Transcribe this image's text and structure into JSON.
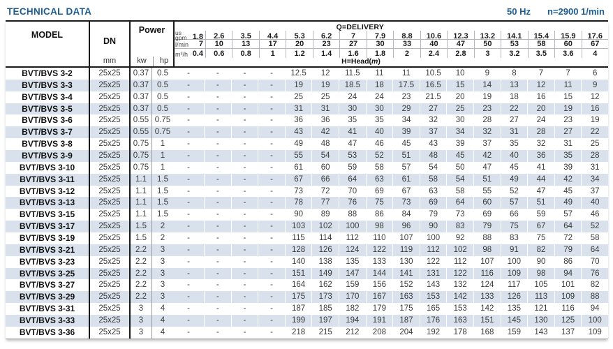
{
  "header": {
    "title": "TECHNICAL DATA",
    "frequency": "50 Hz",
    "speed": "n=2900 1/min"
  },
  "colors": {
    "accent_blue": "#1d5c91",
    "row_stripe": "#d9e2ec",
    "border_black": "#1a1a1a",
    "grid_gray": "#b3b7bc"
  },
  "table": {
    "model_header": "MODEL",
    "dn_header": "DN",
    "dn_unit": "mm",
    "power_header": "Power",
    "power_kw": "kw",
    "power_hp": "hp",
    "delivery_title": "Q=DELIVERY",
    "head_title_pre": "H=Head(",
    "head_title_unit": "m",
    "head_title_post": ")",
    "unit_rows": [
      {
        "label_top": "us",
        "label": "gpm",
        "values": [
          "1.8",
          "2.6",
          "3.5",
          "4.4",
          "5.3",
          "6.2",
          "7",
          "7.9",
          "8.8",
          "10.6",
          "12.3",
          "13.2",
          "14.1",
          "15.4",
          "15.9",
          "17.6"
        ]
      },
      {
        "label": "l/min",
        "values": [
          "7",
          "10",
          "13",
          "17",
          "20",
          "23",
          "27",
          "30",
          "33",
          "40",
          "47",
          "50",
          "53",
          "58",
          "60",
          "67"
        ]
      },
      {
        "label": "m³/h",
        "values": [
          "0.4",
          "0.6",
          "0.8",
          "1",
          "1.2",
          "1.4",
          "1.6",
          "1.8",
          "2",
          "2.4",
          "2.8",
          "3",
          "3.2",
          "3.5",
          "3.6",
          "4"
        ]
      }
    ],
    "rows": [
      {
        "model": "BVT/BVS 3-2",
        "dn": "25x25",
        "kw": "0.37",
        "hp": "0.5",
        "head": [
          "-",
          "-",
          "-",
          "-",
          "12.5",
          "12",
          "11.5",
          "11",
          "11",
          "10.5",
          "10",
          "9",
          "8",
          "7",
          "7",
          "6"
        ]
      },
      {
        "model": "BVT/BVS 3-3",
        "dn": "25x25",
        "kw": "0.37",
        "hp": "0.5",
        "head": [
          "-",
          "-",
          "-",
          "-",
          "19",
          "19",
          "18.5",
          "18",
          "17.5",
          "16.5",
          "15",
          "14",
          "13",
          "12",
          "11",
          "9"
        ]
      },
      {
        "model": "BVT/BVS 3-4",
        "dn": "25x25",
        "kw": "0.37",
        "hp": "0.5",
        "head": [
          "-",
          "-",
          "-",
          "-",
          "25",
          "25",
          "24",
          "24",
          "23",
          "21.5",
          "20",
          "19",
          "18",
          "16",
          "15",
          "12"
        ]
      },
      {
        "model": "BVT/BVS 3-5",
        "dn": "25x25",
        "kw": "0.37",
        "hp": "0.5",
        "head": [
          "-",
          "-",
          "-",
          "-",
          "31",
          "31",
          "30",
          "30",
          "29",
          "27",
          "25",
          "23",
          "22",
          "20",
          "19",
          "16"
        ]
      },
      {
        "model": "BVT/BVS 3-6",
        "dn": "25x25",
        "kw": "0.55",
        "hp": "0.75",
        "head": [
          "-",
          "-",
          "-",
          "-",
          "36",
          "36",
          "35",
          "35",
          "34",
          "32",
          "30",
          "28",
          "27",
          "24",
          "23",
          "19"
        ]
      },
      {
        "model": "BVT/BVS 3-7",
        "dn": "25x25",
        "kw": "0.55",
        "hp": "0.75",
        "head": [
          "-",
          "-",
          "-",
          "-",
          "43",
          "42",
          "41",
          "40",
          "39",
          "37",
          "34",
          "32",
          "31",
          "28",
          "27",
          "22"
        ]
      },
      {
        "model": "BVT/BVS 3-8",
        "dn": "25x25",
        "kw": "0.75",
        "hp": "1",
        "head": [
          "-",
          "-",
          "-",
          "-",
          "49",
          "48",
          "47",
          "46",
          "45",
          "43",
          "39",
          "37",
          "35",
          "32",
          "31",
          "25"
        ]
      },
      {
        "model": "BVT/BVS 3-9",
        "dn": "25x25",
        "kw": "0.75",
        "hp": "1",
        "head": [
          "-",
          "-",
          "-",
          "-",
          "55",
          "54",
          "53",
          "52",
          "51",
          "48",
          "45",
          "42",
          "40",
          "36",
          "35",
          "28"
        ]
      },
      {
        "model": "BVT/BVS 3-10",
        "dn": "25x25",
        "kw": "0.75",
        "hp": "1",
        "head": [
          "-",
          "-",
          "-",
          "-",
          "61",
          "60",
          "59",
          "58",
          "57",
          "54",
          "50",
          "47",
          "45",
          "41",
          "39",
          "31"
        ]
      },
      {
        "model": "BVT/BVS 3-11",
        "dn": "25x25",
        "kw": "1.1",
        "hp": "1.5",
        "head": [
          "-",
          "-",
          "-",
          "-",
          "67",
          "66",
          "64",
          "63",
          "61",
          "58",
          "54",
          "51",
          "49",
          "44",
          "42",
          "34"
        ]
      },
      {
        "model": "BVT/BVS 3-12",
        "dn": "25x25",
        "kw": "1.1",
        "hp": "1.5",
        "head": [
          "-",
          "-",
          "-",
          "-",
          "73",
          "72",
          "70",
          "69",
          "67",
          "63",
          "58",
          "55",
          "52",
          "47",
          "45",
          "37"
        ]
      },
      {
        "model": "BVT/BVS 3-13",
        "dn": "25x25",
        "kw": "1.1",
        "hp": "1.5",
        "head": [
          "-",
          "-",
          "-",
          "-",
          "78",
          "77",
          "76",
          "75",
          "73",
          "69",
          "64",
          "60",
          "57",
          "51",
          "49",
          "40"
        ]
      },
      {
        "model": "BVT/BVS 3-15",
        "dn": "25x25",
        "kw": "1.1",
        "hp": "1.5",
        "head": [
          "-",
          "-",
          "-",
          "-",
          "90",
          "89",
          "88",
          "86",
          "84",
          "79",
          "73",
          "69",
          "66",
          "59",
          "57",
          "46"
        ]
      },
      {
        "model": "BVT/BVS 3-17",
        "dn": "25x25",
        "kw": "1.5",
        "hp": "2",
        "head": [
          "-",
          "-",
          "-",
          "-",
          "103",
          "102",
          "100",
          "98",
          "96",
          "90",
          "83",
          "79",
          "75",
          "67",
          "64",
          "52"
        ]
      },
      {
        "model": "BVT/BVS 3-19",
        "dn": "25x25",
        "kw": "1.5",
        "hp": "2",
        "head": [
          "-",
          "-",
          "-",
          "-",
          "115",
          "114",
          "112",
          "110",
          "107",
          "100",
          "92",
          "88",
          "83",
          "75",
          "72",
          "58"
        ]
      },
      {
        "model": "BVT/BVS 3-21",
        "dn": "25x25",
        "kw": "2.2",
        "hp": "3",
        "head": [
          "-",
          "-",
          "-",
          "-",
          "128",
          "126",
          "124",
          "122",
          "119",
          "112",
          "102",
          "98",
          "91",
          "82",
          "79",
          "64"
        ]
      },
      {
        "model": "BVT/BVS 3-23",
        "dn": "25x25",
        "kw": "2.2",
        "hp": "3",
        "head": [
          "-",
          "-",
          "-",
          "-",
          "140",
          "138",
          "135",
          "133",
          "130",
          "122",
          "112",
          "107",
          "100",
          "90",
          "86",
          "70"
        ]
      },
      {
        "model": "BVT/BVS 3-25",
        "dn": "25x25",
        "kw": "2.2",
        "hp": "3",
        "head": [
          "-",
          "-",
          "-",
          "-",
          "151",
          "149",
          "147",
          "144",
          "141",
          "131",
          "122",
          "116",
          "109",
          "98",
          "94",
          "76"
        ]
      },
      {
        "model": "BVT/BVS 3-27",
        "dn": "25x25",
        "kw": "2.2",
        "hp": "3",
        "head": [
          "-",
          "-",
          "-",
          "-",
          "164",
          "162",
          "159",
          "156",
          "152",
          "143",
          "132",
          "124",
          "117",
          "105",
          "101",
          "82"
        ]
      },
      {
        "model": "BVT/BVS 3-29",
        "dn": "25x25",
        "kw": "2.2",
        "hp": "3",
        "head": [
          "-",
          "-",
          "-",
          "-",
          "175",
          "173",
          "170",
          "167",
          "163",
          "153",
          "142",
          "133",
          "126",
          "113",
          "109",
          "88"
        ]
      },
      {
        "model": "BVT/BVS 3-31",
        "dn": "25x25",
        "kw": "3",
        "hp": "4",
        "head": [
          "-",
          "-",
          "-",
          "-",
          "187",
          "185",
          "182",
          "179",
          "175",
          "165",
          "153",
          "142",
          "135",
          "121",
          "116",
          "94"
        ]
      },
      {
        "model": "BVT/BVS 3-33",
        "dn": "25x25",
        "kw": "3",
        "hp": "4",
        "head": [
          "-",
          "-",
          "-",
          "-",
          "199",
          "197",
          "194",
          "191",
          "187",
          "176",
          "163",
          "151",
          "145",
          "130",
          "125",
          "100"
        ]
      },
      {
        "model": "BVT/BVS 3-36",
        "dn": "25x25",
        "kw": "3",
        "hp": "4",
        "head": [
          "-",
          "-",
          "-",
          "-",
          "218",
          "215",
          "212",
          "208",
          "204",
          "192",
          "178",
          "168",
          "159",
          "143",
          "137",
          "109"
        ]
      }
    ]
  }
}
